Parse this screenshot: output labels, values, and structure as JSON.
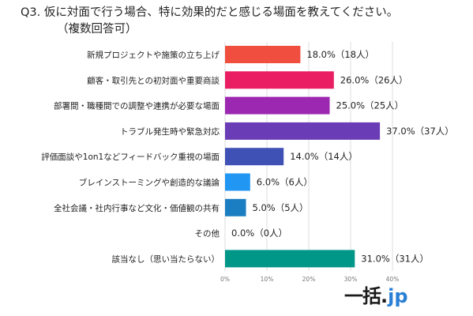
{
  "header": {
    "title": "Q3. 仮に対面で行う場合、特に効果的だと感じる場面を教えてください。",
    "subtitle": "（複数回答可）"
  },
  "brand": {
    "logo_main": "一括",
    "logo_dot": ".",
    "logo_suffix": "jp"
  },
  "chart_data": {
    "type": "bar",
    "orientation": "horizontal",
    "title": "Q3. 仮に対面で行う場合、特に効果的だと感じる場面を教えてください。",
    "subtitle": "（複数回答可）",
    "unit": "%",
    "xlim": [
      0,
      40
    ],
    "ticks": [
      "0%",
      "10%",
      "20%",
      "30%",
      "40%"
    ],
    "tick_values": [
      0,
      10,
      20,
      30,
      40
    ],
    "grid": true,
    "categories": [
      "新規プロジェクトや施策の立ち上げ",
      "顧客・取引先との初対面や重要商談",
      "部署間・職種間での調整や連携が必要な場面",
      "トラブル発生時や緊急対応",
      "評価面談や1on1などフィードバック重視の場面",
      "ブレインストーミングや創造的な議論",
      "全社会議・社内行事など文化・価値観の共有",
      "その他",
      "該当なし（思い当たらない）"
    ],
    "values": [
      18.0,
      26.0,
      25.0,
      37.0,
      14.0,
      6.0,
      5.0,
      0.0,
      31.0
    ],
    "value_labels": [
      "18.0%（18人）",
      "26.0%（26人）",
      "25.0%（25人）",
      "37.0%（37人）",
      "14.0%（14人）",
      "6.0%（6人）",
      "5.0%（5人）",
      "0.0%（0人）",
      "31.0%（31人）"
    ],
    "colors": [
      "#f04e3e",
      "#e91e63",
      "#9c27b0",
      "#6a3cb5",
      "#3f51b5",
      "#2196f3",
      "#1c7ec2",
      "#00bcd4",
      "#009688"
    ]
  }
}
